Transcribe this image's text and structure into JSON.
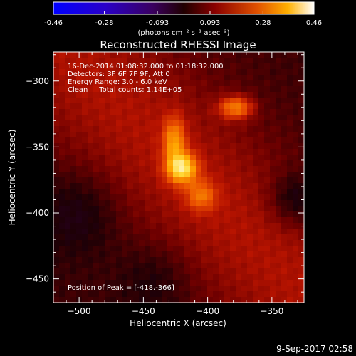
{
  "chart_data": {
    "type": "heatmap",
    "title": "Reconstructed RHESSI Image",
    "xlabel": "Heliocentric X (arcsec)",
    "ylabel": "Heliocentric Y (arcsec)",
    "xlim": [
      -520,
      -325
    ],
    "ylim": [
      -468,
      -278
    ],
    "xticks": [
      -500,
      -450,
      -400,
      -350
    ],
    "yticks": [
      -300,
      -350,
      -400,
      -450
    ],
    "colorbar": {
      "min": -0.46,
      "max": 0.46,
      "ticks": [
        "-0.46",
        "-0.28",
        "-0.093",
        "0.093",
        "0.28",
        "0.46"
      ],
      "unit_label": "(photons cm⁻² s⁻¹ asec⁻²)"
    },
    "sources": [
      {
        "x": -420,
        "y": -366,
        "peak": 0.46
      },
      {
        "x": -426,
        "y": -345,
        "peak": 0.28
      },
      {
        "x": -405,
        "y": -387,
        "peak": 0.25
      },
      {
        "x": -378,
        "y": -320,
        "peak": 0.3
      }
    ],
    "annotations": [
      "16-Dec-2014 01:08:32.000 to 01:18:32.000",
      "Detectors: 3F 6F 7F 9F, Att 0",
      "Energy Range: 3.0 - 6.0 keV",
      "Clean     Total counts: 1.14E+05"
    ],
    "peak_label": "Position of Peak = [-418,-366]",
    "footer_date": "9-Sep-2017 02:58"
  }
}
